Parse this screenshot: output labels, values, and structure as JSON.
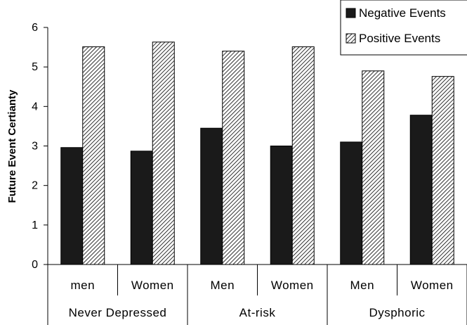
{
  "chart_data": {
    "type": "bar",
    "ylabel": "Future Event Certianty",
    "ylim": [
      0,
      6
    ],
    "yticks": [
      "0",
      "1",
      "2",
      "3",
      "4",
      "5",
      "6"
    ],
    "groups": [
      "Never Depressed",
      "At-risk",
      "Dysphoric"
    ],
    "categories": [
      "men",
      "Women",
      "Men",
      "Women",
      "Men",
      "Women"
    ],
    "series": [
      {
        "name": "Negative Events",
        "values": [
          2.96,
          2.87,
          3.45,
          3.0,
          3.1,
          3.78
        ],
        "color": "#1a1a1a",
        "fill": "solid"
      },
      {
        "name": "Positive Events",
        "values": [
          5.51,
          5.63,
          5.4,
          5.51,
          4.9,
          4.76
        ],
        "color": "#ffffff",
        "fill": "diagonal-hatch"
      }
    ],
    "legend": "top-right",
    "grid": false
  }
}
